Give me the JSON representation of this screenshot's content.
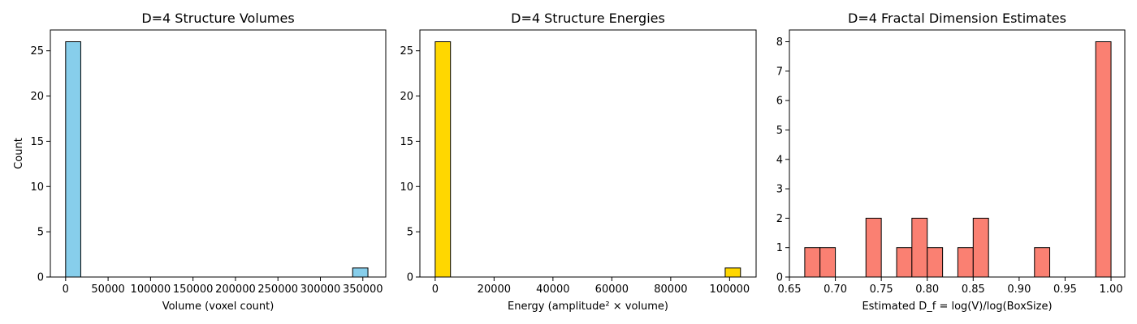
{
  "chart_data": [
    {
      "type": "bar",
      "title": "D=4 Structure Volumes",
      "xlabel": "Volume (voxel count)",
      "ylabel": "Count",
      "xlim": [
        -18000,
        377000
      ],
      "ylim": [
        0,
        27.3
      ],
      "xticks": [
        0,
        50000,
        100000,
        150000,
        200000,
        250000,
        300000,
        350000
      ],
      "xtick_labels": [
        "0",
        "50000",
        "100000",
        "150000",
        "200000",
        "250000",
        "300000",
        "350000"
      ],
      "yticks": [
        0,
        5,
        10,
        15,
        20,
        25
      ],
      "ytick_labels": [
        "0",
        "5",
        "10",
        "15",
        "20",
        "25"
      ],
      "bars": [
        {
          "x0": 0,
          "x1": 17800,
          "count": 26
        },
        {
          "x0": 338000,
          "x1": 356000,
          "count": 1
        }
      ],
      "color": "#87ceeb",
      "grid": false
    },
    {
      "type": "bar",
      "title": "D=4 Structure Energies",
      "xlabel": "Energy (amplitude² × volume)",
      "ylabel": "",
      "xlim": [
        -5200,
        109000
      ],
      "ylim": [
        0,
        27.3
      ],
      "xticks": [
        0,
        20000,
        40000,
        60000,
        80000,
        100000
      ],
      "xtick_labels": [
        "0",
        "20000",
        "40000",
        "60000",
        "80000",
        "100000"
      ],
      "yticks": [
        0,
        5,
        10,
        15,
        20,
        25
      ],
      "ytick_labels": [
        "0",
        "5",
        "10",
        "15",
        "20",
        "25"
      ],
      "bars": [
        {
          "x0": 0,
          "x1": 5200,
          "count": 26
        },
        {
          "x0": 98500,
          "x1": 103700,
          "count": 1
        }
      ],
      "color": "#ffd700",
      "grid": false
    },
    {
      "type": "bar",
      "title": "D=4 Fractal Dimension Estimates",
      "xlabel": "Estimated D_f = log(V)/log(BoxSize)",
      "ylabel": "",
      "xlim": [
        0.65,
        1.015
      ],
      "ylim": [
        0,
        8.4
      ],
      "xticks": [
        0.65,
        0.7,
        0.75,
        0.8,
        0.85,
        0.9,
        0.95,
        1.0
      ],
      "xtick_labels": [
        "0.65",
        "0.70",
        "0.75",
        "0.80",
        "0.85",
        "0.90",
        "0.95",
        "1.00"
      ],
      "yticks": [
        0,
        1,
        2,
        3,
        4,
        5,
        6,
        7,
        8
      ],
      "ytick_labels": [
        "0",
        "1",
        "2",
        "3",
        "4",
        "5",
        "6",
        "7",
        "8"
      ],
      "bars": [
        {
          "x0": 0.6667,
          "x1": 0.6833,
          "count": 1
        },
        {
          "x0": 0.6833,
          "x1": 0.7,
          "count": 1
        },
        {
          "x0": 0.7333,
          "x1": 0.75,
          "count": 2
        },
        {
          "x0": 0.7667,
          "x1": 0.7833,
          "count": 1
        },
        {
          "x0": 0.7833,
          "x1": 0.8,
          "count": 2
        },
        {
          "x0": 0.8,
          "x1": 0.8167,
          "count": 1
        },
        {
          "x0": 0.8333,
          "x1": 0.85,
          "count": 1
        },
        {
          "x0": 0.85,
          "x1": 0.8667,
          "count": 2
        },
        {
          "x0": 0.9167,
          "x1": 0.9333,
          "count": 1
        },
        {
          "x0": 0.9833,
          "x1": 1.0,
          "count": 8
        }
      ],
      "color": "#fa8072",
      "grid": false
    }
  ]
}
